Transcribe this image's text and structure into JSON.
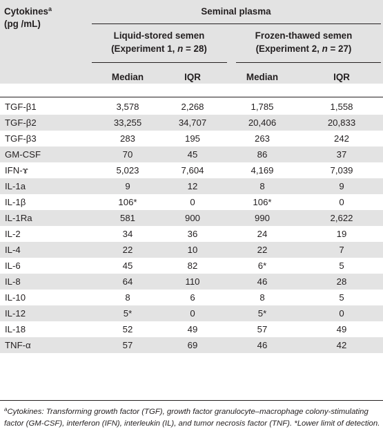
{
  "header": {
    "cytokines_label": "Cytokines",
    "cytokines_sup": "a",
    "units_label": "(pg /mL)",
    "seminal_plasma": "Seminal plasma",
    "group1_line1": "Liquid-stored semen",
    "group1_line2": "(Experiment 1, n = 28)",
    "group2_line1": "Frozen-thawed semen",
    "group2_line2": "(Experiment 2, n = 27)",
    "median": "Median",
    "iqr": "IQR"
  },
  "rows": [
    {
      "name": "TGF-β1",
      "m1": "3,578",
      "i1": "2,268",
      "m2": "1,785",
      "i2": "1,558"
    },
    {
      "name": "TGF-β2",
      "m1": "33,255",
      "i1": "34,707",
      "m2": "20,406",
      "i2": "20,833"
    },
    {
      "name": "TGF-β3",
      "m1": "283",
      "i1": "195",
      "m2": "263",
      "i2": "242"
    },
    {
      "name": "GM-CSF",
      "m1": "70",
      "i1": "45",
      "m2": "86",
      "i2": "37"
    },
    {
      "name": "IFN-ɤ",
      "m1": "5,023",
      "i1": "7,604",
      "m2": "4,169",
      "i2": "7,039"
    },
    {
      "name": "IL-1a",
      "m1": "9",
      "i1": "12",
      "m2": "8",
      "i2": "9"
    },
    {
      "name": "IL-1β",
      "m1": "106*",
      "i1": "0",
      "m2": "106*",
      "i2": "0"
    },
    {
      "name": "IL-1Ra",
      "m1": "581",
      "i1": "900",
      "m2": "990",
      "i2": "2,622"
    },
    {
      "name": "IL-2",
      "m1": "34",
      "i1": "36",
      "m2": "24",
      "i2": "19"
    },
    {
      "name": "IL-4",
      "m1": "22",
      "i1": "10",
      "m2": "22",
      "i2": "7"
    },
    {
      "name": "IL-6",
      "m1": "45",
      "i1": "82",
      "m2": "6*",
      "i2": "5"
    },
    {
      "name": "IL-8",
      "m1": "64",
      "i1": "110",
      "m2": "46",
      "i2": "28"
    },
    {
      "name": "IL-10",
      "m1": "8",
      "i1": "6",
      "m2": "8",
      "i2": "5"
    },
    {
      "name": "IL-12",
      "m1": "5*",
      "i1": "0",
      "m2": "5*",
      "i2": "0"
    },
    {
      "name": "IL-18",
      "m1": "52",
      "i1": "49",
      "m2": "57",
      "i2": "49"
    },
    {
      "name": "TNF-α",
      "m1": "57",
      "i1": "69",
      "m2": "46",
      "i2": "42"
    }
  ],
  "footnote": {
    "sup": "a",
    "text": "Cytokines: Transforming growth factor (TGF), growth factor granulocyte–macrophage colony-stimulating factor (GM-CSF), interferon (IFN), interleukin (IL), and tumor necrosis factor (TNF). *Lower limit of detection."
  }
}
